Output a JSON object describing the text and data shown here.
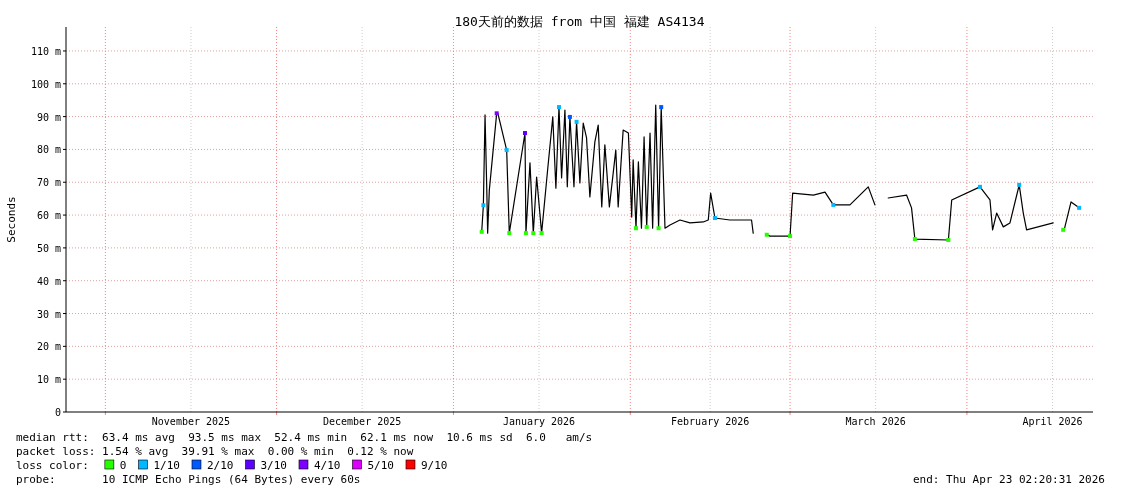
{
  "chart_data": {
    "type": "line",
    "title": "180天前的数据 from 中国 福建 AS4134",
    "ylabel": "Seconds",
    "xlim": [
      "2025-10-25T02:20",
      "2026-04-23T02:20"
    ],
    "xticks": [
      {
        "value": "2025-11-01",
        "label": null
      },
      {
        "value": "2025-11-16",
        "label": "November 2025"
      },
      {
        "value": "2025-12-01",
        "label": null
      },
      {
        "value": "2025-12-16",
        "label": "December 2025"
      },
      {
        "value": "2026-01-01",
        "label": null
      },
      {
        "value": "2026-01-16",
        "label": "January 2026"
      },
      {
        "value": "2026-02-01",
        "label": null
      },
      {
        "value": "2026-02-15",
        "label": "February 2026"
      },
      {
        "value": "2026-03-01",
        "label": null
      },
      {
        "value": "2026-03-16",
        "label": "March 2026"
      },
      {
        "value": "2026-04-01",
        "label": null
      },
      {
        "value": "2026-04-16",
        "label": "April 2026"
      }
    ],
    "ylim": [
      0,
      117.3
    ],
    "yticks": [
      0,
      {
        "value": 10,
        "label": "10 m"
      },
      {
        "value": 20,
        "label": "20 m"
      },
      {
        "value": 30,
        "label": "30 m"
      },
      {
        "value": 40,
        "label": "40 m"
      },
      {
        "value": 50,
        "label": "50 m"
      },
      {
        "value": 60,
        "label": "60 m"
      },
      {
        "value": 70,
        "label": "70 m"
      },
      {
        "value": 80,
        "label": "80 m"
      },
      {
        "value": 90,
        "label": "90 m"
      },
      {
        "value": 100,
        "label": "100 m"
      },
      {
        "value": 110,
        "label": "110 m"
      }
    ],
    "grid": true,
    "legend": "bottom",
    "legend_title": "loss color:",
    "annotations": [
      "median rtt:  63.4 ms avg  93.5 ms max  52.4 ms min  62.1 ms now  10.6 ms sd  6.0   am/s",
      "packet loss: 1.54 % avg  39.91 % max  0.00 % min  0.12 % now",
      "probe:       10 ICMP Echo Pings (64 Bytes) every 60s",
      "end: Thu Apr 23 02:20:31 2026"
    ],
    "series": [
      {
        "color": "#000000",
        "x": [
          "2026-01-05T23:00",
          "2026-01-06T06:00",
          "2026-01-06T13:00",
          "2026-01-06T20:00",
          "2026-01-07T00:00",
          "2026-01-07T07:00",
          "2026-01-08T14:00",
          "2026-01-08T19:00",
          "2026-01-10T08:00",
          "2026-01-10T19:00",
          "2026-01-13T13:00",
          "2026-01-13T17:00",
          "2026-01-14T10:00",
          "2026-01-15T00:00",
          "2026-01-15T14:00",
          "2026-01-16T11:00",
          "2026-01-17T11:00",
          "2026-01-18T10:00",
          "2026-01-18T23:00",
          "2026-01-19T12:00",
          "2026-01-19T23:00",
          "2026-01-20T13:00",
          "2026-01-20T23:00",
          "2026-01-21T10:00",
          "2026-01-22T03:00",
          "2026-01-22T14:00",
          "2026-01-23T04:00",
          "2026-01-23T18:00",
          "2026-01-24T08:00",
          "2026-01-24T22:00",
          "2026-01-25T19:00",
          "2026-01-26T09:00",
          "2026-01-27T00:00",
          "2026-01-27T13:00",
          "2026-01-28T08:00",
          "2026-01-29T11:00",
          "2026-01-29T21:00",
          "2026-01-30T18:00",
          "2026-01-31T16:00",
          "2026-02-01T06:00",
          "2026-02-01T12:00",
          "2026-02-02T00:00",
          "2026-02-02T10:00",
          "2026-02-02T23:00",
          "2026-02-03T10:00",
          "2026-02-03T21:00",
          "2026-02-04T11:00",
          "2026-02-04T22:00",
          "2026-02-05T11:00",
          "2026-02-05T23:00",
          "2026-02-06T10:00",
          "2026-02-07T02:00",
          "2026-02-07T23:00",
          "2026-02-09T17:00",
          "2026-02-11T11:00",
          "2026-02-13T19:00",
          "2026-02-14T16:00",
          "2026-02-15T02:00",
          "2026-02-15T20:00",
          "2026-02-18T11:00",
          "2026-02-22T06:00",
          "2026-02-22T13:00",
          "2026-02-23T18:00",
          "2026-02-24T22:00",
          "2026-02-25T12:00",
          "2026-03-01T00:00",
          "2026-03-01T11:00",
          "2026-03-05T02:00",
          "2026-03-07T03:00",
          "2026-03-08T14:00",
          "2026-03-11T12:00",
          "2026-03-14T17:00",
          "2026-03-15T21:00",
          "2026-03-17T00:00",
          "2026-03-18T05:00",
          "2026-03-21T10:00",
          "2026-03-22T07:00",
          "2026-03-22T21:00",
          "2026-03-28T18:00",
          "2026-03-29T08:00",
          "2026-04-03T07:00",
          "2026-04-05T01:00",
          "2026-04-05T12:00",
          "2026-04-06T05:00",
          "2026-04-07T09:00",
          "2026-04-08T13:00",
          "2026-04-10T04:00",
          "2026-04-10T21:00",
          "2026-04-11T11:00",
          "2026-04-16T03:00",
          "2026-04-17T00:00",
          "2026-04-17T21:00",
          "2026-04-18T01:00",
          "2026-04-19T06:00",
          "2026-04-20T16:00"
        ],
        "values": [
          54.9,
          63,
          90.5,
          68.7,
          54.5,
          67.6,
          91,
          91,
          79.8,
          54.5,
          85,
          54.5,
          75.9,
          54.5,
          71.6,
          54.5,
          72.8,
          89.9,
          68.2,
          92.9,
          71.3,
          92,
          68.6,
          89.9,
          68.6,
          88.4,
          69.8,
          88,
          83.5,
          65.5,
          82.3,
          87.4,
          62.5,
          81.4,
          62.5,
          79.8,
          62.5,
          85.9,
          85,
          59.4,
          76.8,
          56,
          76.2,
          56,
          83.8,
          56.4,
          85,
          56,
          93.5,
          56,
          92.9,
          56,
          57,
          58.5,
          57.6,
          57.9,
          58.5,
          66.7,
          59.1,
          58.5,
          58.5,
          54.5,
          null,
          54,
          53.6,
          53.6,
          66.7,
          66.1,
          67,
          63.1,
          63.1,
          68.6,
          63.1,
          null,
          65.2,
          66.1,
          62.2,
          52.7,
          52.4,
          64.6,
          68.6,
          64.6,
          55.5,
          60.6,
          56.4,
          57.6,
          69.2,
          60.6,
          55.5,
          57.6,
          null,
          55.5,
          55.5,
          64,
          62.2
        ]
      },
      {
        "type": "scatter",
        "name": "0",
        "color": "#26ff00",
        "marker": "square",
        "x": [
          "2026-01-05T23:00",
          "2026-01-10T19:00",
          "2026-01-13T17:00",
          "2026-01-15T00:00",
          "2026-01-16T11:00",
          "2026-02-02T00:00",
          "2026-02-03T21:00",
          "2026-02-05T23:00",
          "2026-02-24T22:00",
          "2026-03-01T00:00",
          "2026-03-22T21:00",
          "2026-03-28T18:00",
          "2026-04-17T21:00"
        ],
        "values": [
          54.9,
          54.5,
          54.5,
          54.5,
          54.5,
          56,
          56.4,
          56,
          54,
          53.6,
          52.7,
          52.4,
          55.5
        ]
      },
      {
        "type": "scatter",
        "name": "1/10",
        "color": "#00b8ff",
        "marker": "square",
        "x": [
          "2026-01-06T06:00",
          "2026-01-10T08:00",
          "2026-01-19T12:00",
          "2026-01-22T14:00",
          "2026-02-15T20:00",
          "2026-03-08T14:00",
          "2026-04-03T07:00",
          "2026-04-10T04:00",
          "2026-04-20T16:00"
        ],
        "values": [
          63,
          79.8,
          92.9,
          88.4,
          59.1,
          63.1,
          68.6,
          69.2,
          62.2
        ]
      },
      {
        "type": "scatter",
        "name": "2/10",
        "color": "#0059ff",
        "marker": "square",
        "x": [
          "2026-01-21T10:00",
          "2026-02-06T10:00"
        ],
        "values": [
          89.9,
          92.9
        ]
      },
      {
        "type": "scatter",
        "name": "3/10",
        "color": "#5e00ff",
        "marker": "square",
        "x": [
          "2026-01-13T13:00"
        ],
        "values": [
          85
        ]
      },
      {
        "type": "scatter",
        "name": "4/10",
        "color": "#7e00ff",
        "marker": "square",
        "x": [
          "2026-01-08T14:00"
        ],
        "values": [
          91
        ]
      },
      {
        "type": "scatter",
        "name": "5/10",
        "color": "#dd00ff",
        "marker": "square"
      },
      {
        "type": "scatter",
        "name": "9/10",
        "color": "#ff0000",
        "marker": "square"
      }
    ]
  }
}
